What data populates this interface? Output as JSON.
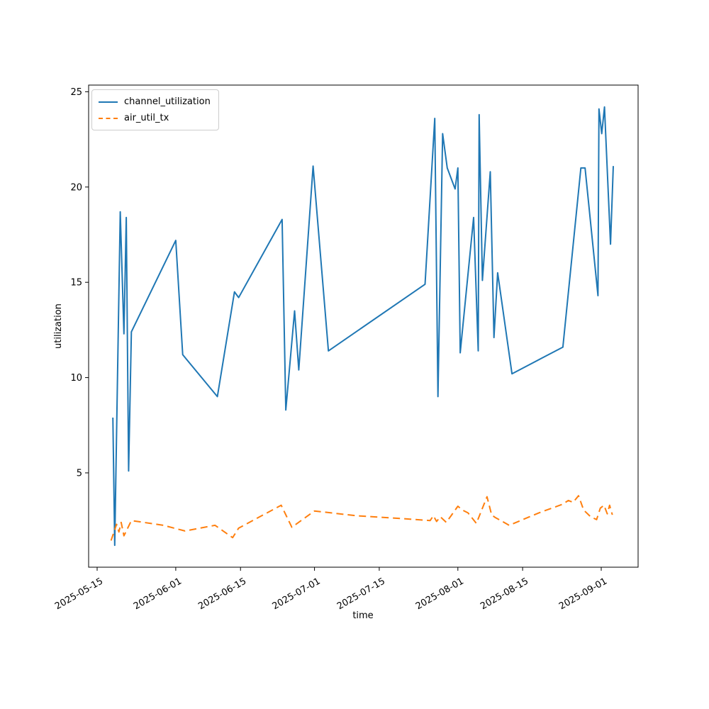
{
  "figure": {
    "background_color": "#ffffff"
  },
  "chart_data": {
    "type": "line",
    "title": "",
    "xlabel": "time",
    "ylabel": "utilization",
    "grid": false,
    "legend_position": "upper left",
    "x_unit": "days since 2025-05-15",
    "xlim_days": [
      -1.84,
      116.97
    ],
    "ylim": [
      0.05,
      25.35
    ],
    "x_tick_rotation_deg": 30,
    "x_ticks": [
      {
        "d": 0,
        "label": "2025-05-15"
      },
      {
        "d": 17,
        "label": "2025-06-01"
      },
      {
        "d": 31,
        "label": "2025-06-15"
      },
      {
        "d": 47,
        "label": "2025-07-01"
      },
      {
        "d": 61,
        "label": "2025-07-15"
      },
      {
        "d": 78,
        "label": "2025-08-01"
      },
      {
        "d": 92,
        "label": "2025-08-15"
      },
      {
        "d": 109,
        "label": "2025-09-01"
      }
    ],
    "y_ticks": [
      {
        "v": 5,
        "label": "5"
      },
      {
        "v": 10,
        "label": "10"
      },
      {
        "v": 15,
        "label": "15"
      },
      {
        "v": 20,
        "label": "20"
      },
      {
        "v": 25,
        "label": "25"
      }
    ],
    "series": [
      {
        "name": "channel_utilization",
        "color": "#1f77b4",
        "style": "solid",
        "points": [
          [
            3.4,
            7.9
          ],
          [
            3.8,
            1.2
          ],
          [
            5.0,
            18.7
          ],
          [
            5.8,
            12.3
          ],
          [
            6.3,
            18.4
          ],
          [
            6.8,
            5.1
          ],
          [
            7.4,
            12.4
          ],
          [
            17.0,
            17.2
          ],
          [
            18.5,
            11.2
          ],
          [
            26.0,
            9.0
          ],
          [
            29.7,
            14.5
          ],
          [
            30.6,
            14.2
          ],
          [
            40.0,
            18.3
          ],
          [
            40.8,
            8.3
          ],
          [
            42.7,
            13.5
          ],
          [
            43.6,
            10.4
          ],
          [
            46.7,
            21.1
          ],
          [
            50.0,
            11.4
          ],
          [
            70.9,
            14.9
          ],
          [
            73.0,
            23.6
          ],
          [
            73.7,
            9.0
          ],
          [
            74.7,
            22.8
          ],
          [
            75.7,
            21.0
          ],
          [
            77.4,
            19.9
          ],
          [
            78.0,
            21.0
          ],
          [
            78.5,
            11.3
          ],
          [
            81.4,
            18.4
          ],
          [
            82.4,
            11.4
          ],
          [
            82.6,
            23.8
          ],
          [
            83.3,
            15.1
          ],
          [
            85.0,
            20.8
          ],
          [
            85.8,
            12.1
          ],
          [
            86.6,
            15.5
          ],
          [
            89.7,
            10.2
          ],
          [
            100.7,
            11.6
          ],
          [
            104.6,
            21.0
          ],
          [
            105.5,
            21.0
          ],
          [
            108.3,
            14.3
          ],
          [
            108.5,
            24.1
          ],
          [
            109.1,
            22.8
          ],
          [
            109.7,
            24.2
          ],
          [
            111.0,
            17.0
          ],
          [
            111.6,
            21.1
          ]
        ]
      },
      {
        "name": "air_util_tx",
        "color": "#ff7f0e",
        "style": "dashed",
        "points": [
          [
            3.0,
            1.45
          ],
          [
            4.2,
            2.3
          ],
          [
            4.7,
            1.9
          ],
          [
            5.2,
            2.4
          ],
          [
            5.8,
            1.7
          ],
          [
            7.4,
            2.5
          ],
          [
            14.3,
            2.25
          ],
          [
            19.0,
            1.95
          ],
          [
            25.5,
            2.25
          ],
          [
            29.3,
            1.6
          ],
          [
            30.6,
            2.1
          ],
          [
            39.8,
            3.3
          ],
          [
            40.8,
            2.8
          ],
          [
            42.1,
            2.15
          ],
          [
            47.0,
            3.0
          ],
          [
            56.0,
            2.75
          ],
          [
            66.0,
            2.6
          ],
          [
            72.0,
            2.5
          ],
          [
            72.7,
            2.75
          ],
          [
            73.4,
            2.45
          ],
          [
            74.2,
            2.7
          ],
          [
            75.5,
            2.4
          ],
          [
            78.0,
            3.25
          ],
          [
            79.0,
            3.05
          ],
          [
            80.2,
            2.9
          ],
          [
            82.0,
            2.35
          ],
          [
            84.3,
            3.75
          ],
          [
            85.3,
            2.8
          ],
          [
            86.0,
            2.67
          ],
          [
            89.1,
            2.25
          ],
          [
            95.5,
            2.9
          ],
          [
            100.6,
            3.35
          ],
          [
            101.9,
            3.55
          ],
          [
            102.9,
            3.45
          ],
          [
            104.1,
            3.8
          ],
          [
            105.2,
            3.05
          ],
          [
            106.7,
            2.7
          ],
          [
            108.0,
            2.55
          ],
          [
            108.8,
            3.15
          ],
          [
            109.6,
            3.3
          ],
          [
            110.3,
            2.85
          ],
          [
            110.8,
            3.3
          ],
          [
            111.4,
            2.8
          ]
        ]
      }
    ]
  }
}
